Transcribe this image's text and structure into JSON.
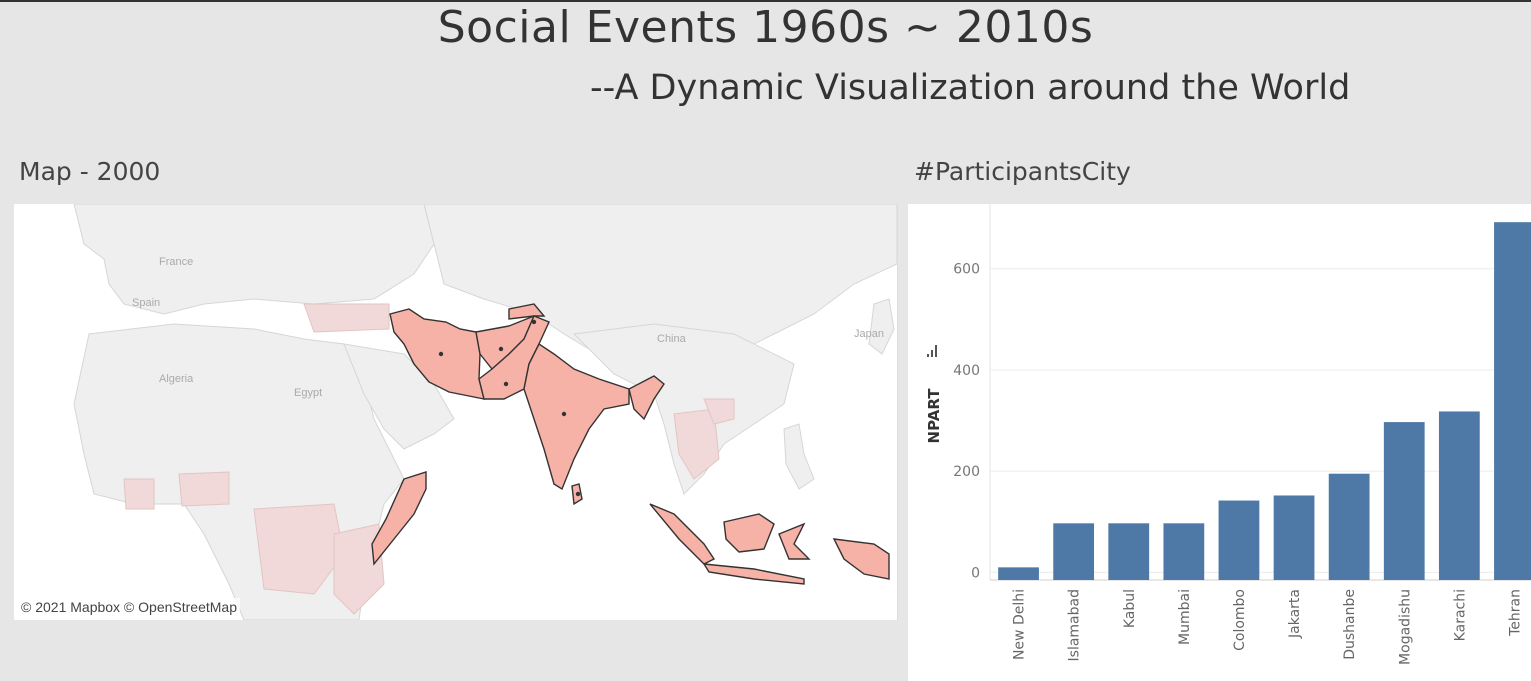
{
  "header": {
    "title": "Social Events 1960s ~ 2010s",
    "subtitle": "--A Dynamic Visualization around the World"
  },
  "map": {
    "sheet_title": "Map - 2000",
    "attribution": "© 2021 Mapbox  © OpenStreetMap",
    "place_labels": [
      "France",
      "Spain",
      "Algeria",
      "Egypt",
      "China",
      "Japan"
    ],
    "highlight_color": "#f6b2a6",
    "faded_color": "#f0d9d8",
    "outline_color": "#333333",
    "highlighted_regions": [
      "Iran",
      "Afghanistan",
      "Pakistan",
      "Tajikistan",
      "India",
      "Bangladesh",
      "Sri Lanka",
      "Somalia",
      "Indonesia"
    ]
  },
  "bar_chart": {
    "sheet_title": "#ParticipantsCity",
    "bar_color": "#4e79a7",
    "sort_icon": "sort-descending-icon"
  },
  "chart_data": {
    "type": "bar",
    "categories": [
      "New Delhi",
      "Islamabad",
      "Kabul",
      "Mumbai",
      "Colombo",
      "Jakarta",
      "Dushanbe",
      "Mogadishu",
      "Karachi",
      "Tehran"
    ],
    "values": [
      10,
      97,
      97,
      97,
      142,
      152,
      195,
      297,
      318,
      692
    ],
    "xlabel": "",
    "ylabel": "NPART",
    "ylim": [
      -15,
      720
    ],
    "yticks": [
      0,
      200,
      400,
      600
    ],
    "grid": true
  }
}
